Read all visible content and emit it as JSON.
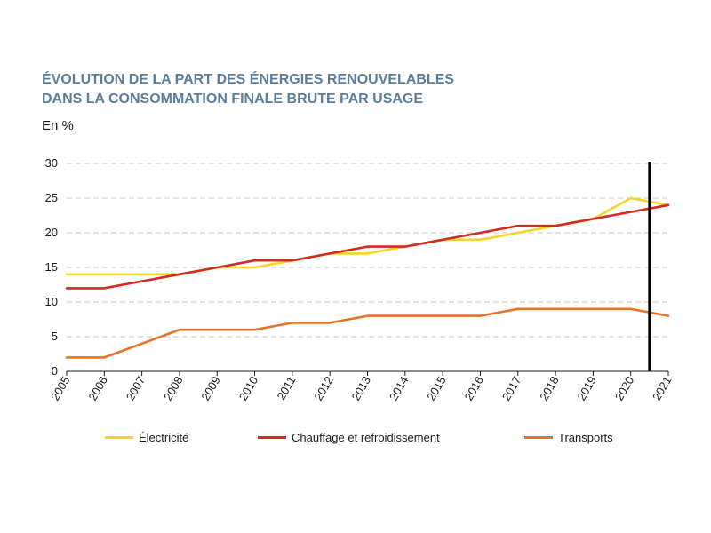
{
  "title": {
    "line1": "ÉVOLUTION DE LA PART DES ÉNERGIES RENOUVELABLES",
    "line2": "DANS LA CONSOMMATION FINALE BRUTE PAR USAGE"
  },
  "unit_label": "En %",
  "chart_data": {
    "type": "line",
    "x": [
      "2005",
      "2006",
      "2007",
      "2008",
      "2009",
      "2010",
      "2011",
      "2012",
      "2013",
      "2014",
      "2015",
      "2016",
      "2017",
      "2018",
      "2019",
      "2020",
      "2021"
    ],
    "yticks": [
      0,
      5,
      10,
      15,
      20,
      25,
      30
    ],
    "ylim": [
      0,
      30
    ],
    "grid": "horizontal dashed",
    "legend_position": "bottom",
    "marker_line": "between 2020 and 2021",
    "series": [
      {
        "name": "Électricité",
        "color": "#f5d327",
        "values": [
          14,
          14,
          14,
          14,
          15,
          15,
          16,
          17,
          17,
          18,
          19,
          19,
          20,
          21,
          22,
          25,
          24
        ]
      },
      {
        "name": "Chauffage et refroidissement",
        "color": "#d42a20",
        "values": [
          12,
          12,
          13,
          14,
          15,
          16,
          16,
          17,
          18,
          18,
          19,
          20,
          21,
          21,
          22,
          23,
          24
        ]
      },
      {
        "name": "Transports",
        "color": "#e5732b",
        "values": [
          2,
          2,
          4,
          6,
          6,
          6,
          7,
          7,
          8,
          8,
          8,
          8,
          9,
          9,
          9,
          9,
          8
        ]
      }
    ]
  }
}
